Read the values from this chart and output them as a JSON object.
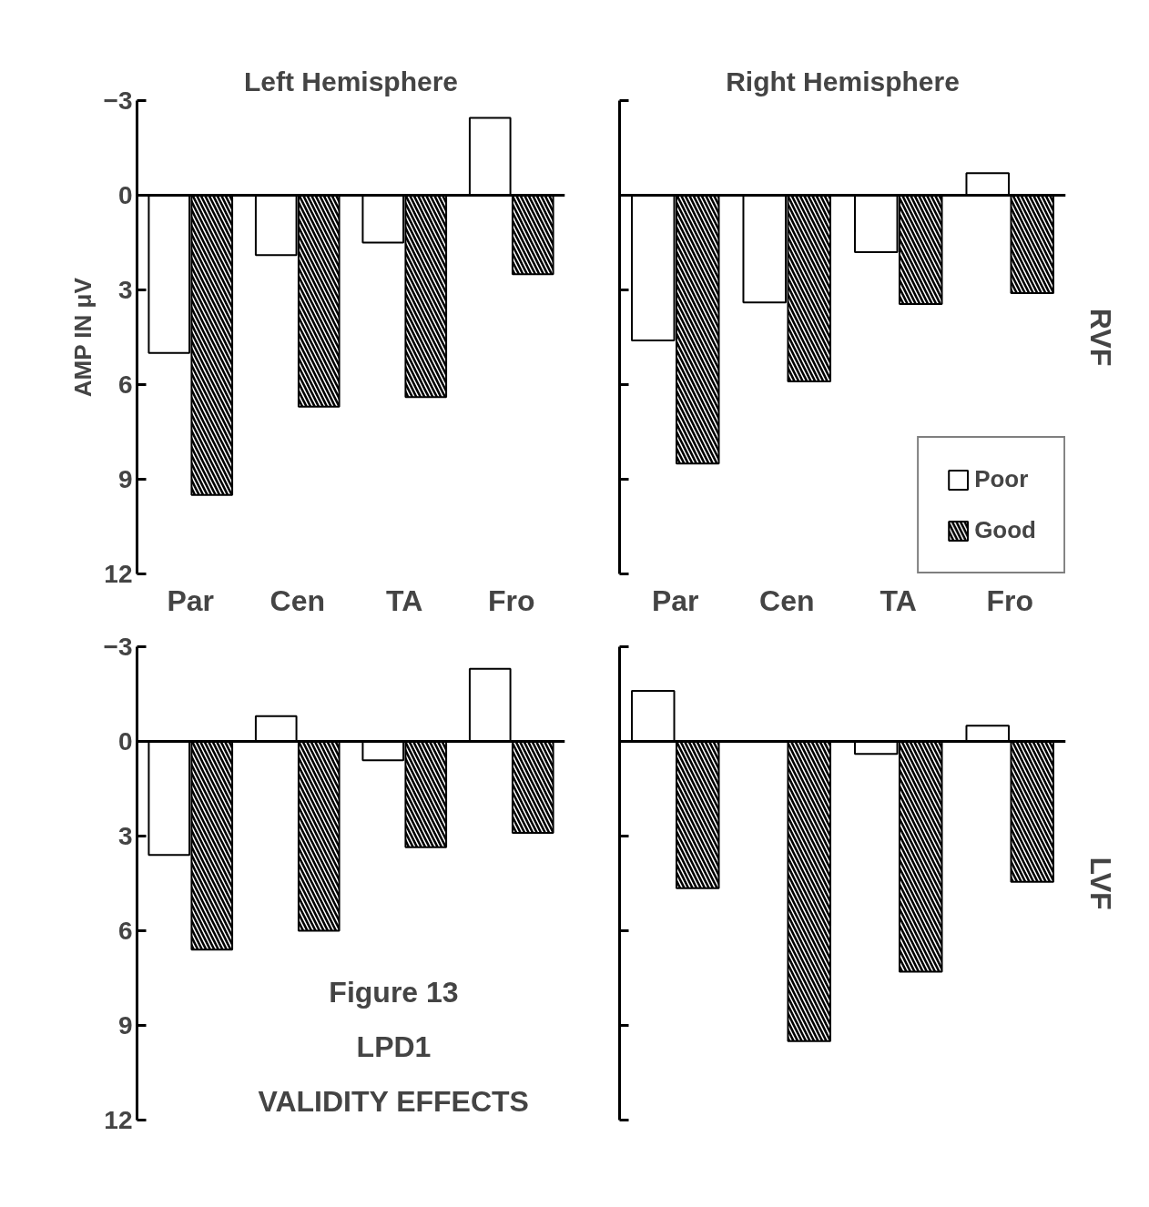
{
  "chart_data": [
    {
      "type": "bar",
      "title": "Left Hemisphere",
      "ref_lines": [
        {
          "axis": "y",
          "value": 0
        }
      ],
      "ylabel": "AMP IN μV",
      "categories": [
        "Par",
        "Cen",
        "TA",
        "Fro"
      ],
      "ylim": [
        12,
        -3
      ],
      "yticks": [
        -3,
        0,
        3,
        6,
        9,
        12
      ],
      "grid": false,
      "legend": false,
      "series": [
        {
          "color": "#ffffff",
          "values": [
            5.0,
            1.9,
            1.5,
            -2.45
          ]
        },
        {
          "color": "#000000",
          "values": [
            9.5,
            6.7,
            6.4,
            2.5
          ]
        }
      ]
    },
    {
      "type": "bar",
      "title": "Right Hemisphere",
      "ref_lines": [
        {
          "axis": "y",
          "value": 0
        }
      ],
      "categories": [
        "Par",
        "Cen",
        "TA",
        "Fro"
      ],
      "ylim": [
        12,
        -3
      ],
      "yticks": [
        {
          "value": -3,
          "label": null
        },
        {
          "value": 0,
          "label": null
        },
        {
          "value": 3,
          "label": null
        },
        {
          "value": 6,
          "label": null
        },
        {
          "value": 9,
          "label": null
        },
        {
          "value": 12,
          "label": null
        }
      ],
      "tick_labels": "x",
      "grid": false,
      "legend": "bottom right",
      "annotations": [
        "RVF"
      ],
      "series": [
        {
          "name": "Poor",
          "color": "#ffffff",
          "values": [
            4.6,
            3.4,
            1.8,
            -0.7
          ]
        },
        {
          "name": "Good",
          "color": "#000000",
          "values": [
            8.5,
            5.9,
            3.45,
            3.1
          ]
        }
      ]
    },
    {
      "type": "bar",
      "ref_lines": [
        {
          "axis": "y",
          "value": 0
        }
      ],
      "categories": [
        null,
        null,
        null,
        null
      ],
      "ylim": [
        12,
        -3
      ],
      "yticks": [
        -3,
        0,
        3,
        6,
        9,
        12
      ],
      "tick_labels": "y",
      "grid": false,
      "legend": false,
      "annotations": [
        "Figure 13",
        "LPD1",
        "VALIDITY EFFECTS"
      ],
      "series": [
        {
          "color": "#ffffff",
          "values": [
            3.6,
            -0.8,
            0.6,
            -2.3
          ]
        },
        {
          "color": "#000000",
          "values": [
            6.6,
            6.0,
            3.35,
            2.9
          ]
        }
      ]
    },
    {
      "type": "bar",
      "ref_lines": [
        {
          "axis": "y",
          "value": 0
        }
      ],
      "categories": [
        null,
        null,
        null,
        null
      ],
      "ylim": [
        12,
        -3
      ],
      "yticks": [
        {
          "value": -3,
          "label": null
        },
        {
          "value": 0,
          "label": null
        },
        {
          "value": 3,
          "label": null
        },
        {
          "value": 6,
          "label": null
        },
        {
          "value": 9,
          "label": null
        },
        {
          "value": 12,
          "label": null
        }
      ],
      "tick_labels": false,
      "grid": false,
      "legend": false,
      "annotations": [
        "LVF"
      ],
      "series": [
        {
          "color": "#ffffff",
          "values": [
            -1.6,
            null,
            0.4,
            -0.5
          ]
        },
        {
          "color": "#000000",
          "values": [
            4.65,
            9.5,
            7.3,
            4.45
          ]
        }
      ]
    }
  ]
}
